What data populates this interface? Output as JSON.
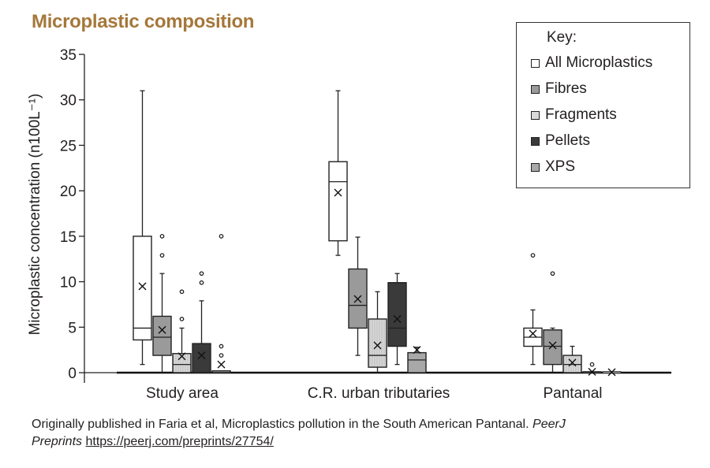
{
  "title": "Microplastic composition",
  "colors": {
    "title": "#a5773a",
    "all": "#ffffff",
    "fibres": "#9a9a9a",
    "fragments": "#d9d9d9",
    "pellets": "#3a3a3a",
    "xps": "#a8a8a8",
    "stroke": "#222222"
  },
  "legend": {
    "title": "Key:",
    "items": [
      {
        "label": "All Microplastics",
        "series": "all"
      },
      {
        "label": "Fibres",
        "series": "fibres"
      },
      {
        "label": "Fragments",
        "series": "fragments"
      },
      {
        "label": "Pellets",
        "series": "pellets"
      },
      {
        "label": "XPS",
        "series": "xps"
      }
    ]
  },
  "caption": {
    "line1": "Originally published in Faria et al, Microplastics pollution in the South American Pantanal.",
    "journal": "PeerJ",
    "journal2": "Preprints",
    "link": "https://peerj.com/preprints/27754/"
  },
  "chart_data": {
    "type": "boxplot",
    "title": "Microplastic composition",
    "xlabel": "",
    "ylabel": "Microplastic concentration (n100L⁻¹)",
    "ylim": [
      0,
      35
    ],
    "yticks": [
      0,
      5,
      10,
      15,
      20,
      25,
      30,
      35
    ],
    "ytick_labels": [
      "0",
      "5",
      "10",
      "15",
      "20",
      "25",
      "30",
      "35"
    ],
    "categories": [
      "Study area",
      "C.R. urban tributaries",
      "Pantanal"
    ],
    "legend_position": "top-right",
    "grid": false,
    "series": [
      {
        "name": "All Microplastics",
        "key": "all",
        "boxes": [
          {
            "min": 0.9,
            "q1": 3.6,
            "median": 4.9,
            "q3": 15.0,
            "max": 31.0,
            "mean": 9.5,
            "outliers": []
          },
          {
            "min": 12.9,
            "q1": 14.5,
            "median": 21.0,
            "q3": 23.2,
            "max": 31.0,
            "mean": 19.8,
            "outliers": []
          },
          {
            "min": 0.9,
            "q1": 2.9,
            "median": 3.9,
            "q3": 4.9,
            "max": 6.9,
            "mean": 4.3,
            "outliers": [
              12.9
            ]
          }
        ]
      },
      {
        "name": "Fibres",
        "key": "fibres",
        "boxes": [
          {
            "min": 0,
            "q1": 1.9,
            "median": 3.9,
            "q3": 6.2,
            "max": 10.9,
            "mean": 4.7,
            "outliers": [
              12.9,
              15.0
            ]
          },
          {
            "min": 1.9,
            "q1": 4.9,
            "median": 7.4,
            "q3": 11.4,
            "max": 14.9,
            "mean": 8.1,
            "outliers": []
          },
          {
            "min": 0,
            "q1": 0.9,
            "median": 2.9,
            "q3": 4.7,
            "max": 4.9,
            "mean": 3.0,
            "outliers": [
              10.9
            ]
          }
        ]
      },
      {
        "name": "Fragments",
        "key": "fragments",
        "boxes": [
          {
            "min": 0,
            "q1": 0,
            "median": 0.9,
            "q3": 2.1,
            "max": 4.9,
            "mean": 1.8,
            "outliers": [
              5.9,
              8.9
            ]
          },
          {
            "min": 0,
            "q1": 0.6,
            "median": 1.9,
            "q3": 5.9,
            "max": 8.9,
            "mean": 3.0,
            "outliers": []
          },
          {
            "min": 0,
            "q1": 0,
            "median": 0.9,
            "q3": 1.9,
            "max": 2.9,
            "mean": 1.1,
            "outliers": []
          }
        ]
      },
      {
        "name": "Pellets",
        "key": "pellets",
        "boxes": [
          {
            "min": 0,
            "q1": 0,
            "median": 0,
            "q3": 3.2,
            "max": 7.9,
            "mean": 1.9,
            "outliers": [
              9.9,
              10.9
            ]
          },
          {
            "min": 0.9,
            "q1": 2.9,
            "median": 4.9,
            "q3": 9.9,
            "max": 10.9,
            "mean": 5.9,
            "outliers": []
          },
          {
            "min": 0,
            "q1": 0,
            "median": 0,
            "q3": 0,
            "max": 0,
            "mean": 0.1,
            "outliers": [
              0.9
            ]
          }
        ]
      },
      {
        "name": "XPS",
        "key": "xps",
        "boxes": [
          {
            "min": 0,
            "q1": 0,
            "median": 0,
            "q3": 0.2,
            "max": 0.2,
            "mean": 0.9,
            "outliers": [
              1.9,
              2.9,
              15.0
            ]
          },
          {
            "min": 0,
            "q1": 0,
            "median": 1.4,
            "q3": 2.2,
            "max": 2.8,
            "mean": 2.5,
            "outliers": []
          },
          {
            "min": 0,
            "q1": 0,
            "median": 0,
            "q3": 0,
            "max": 0,
            "mean": 0.05,
            "outliers": []
          }
        ]
      }
    ]
  }
}
